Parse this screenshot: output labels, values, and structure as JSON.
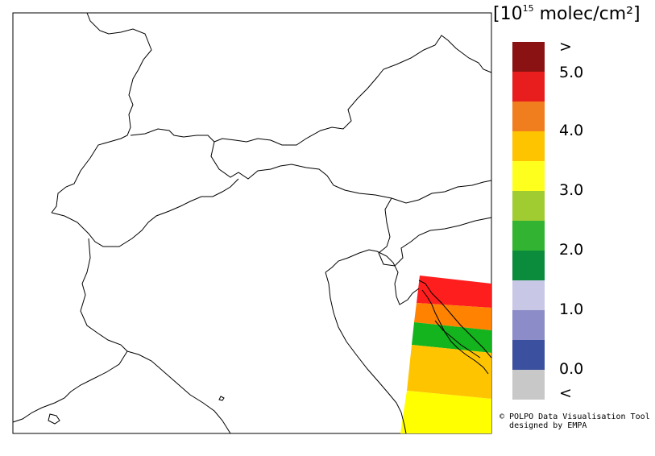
{
  "legend": {
    "title_main": "10",
    "title_exp": "15",
    "title_unit": "molec/cm²",
    "open": "[",
    "close": "]",
    "labels": [
      ">",
      "5.0",
      "4.0",
      "3.0",
      "2.0",
      "1.0",
      "0.0",
      "<"
    ],
    "colors": [
      "#8b1212",
      "#e81e1e",
      "#f07d1e",
      "#ffc400",
      "#ffff1e",
      "#a0cc32",
      "#32b432",
      "#0a8c3c",
      "#c8c8e6",
      "#8c8cc8",
      "#3c50a0",
      "#c8c8c8"
    ]
  },
  "credit": {
    "line1": "© POLPO Data Visualisation Tool",
    "line2": "designed by EMPA"
  },
  "data_bands": [
    {
      "color": "#ff1e1e",
      "label": "red band"
    },
    {
      "color": "#ff8200",
      "label": "orange band"
    },
    {
      "color": "#14b41e",
      "label": "green band"
    },
    {
      "color": "#ffc400",
      "label": "light orange band"
    },
    {
      "color": "#ffff00",
      "label": "yellow band"
    }
  ]
}
